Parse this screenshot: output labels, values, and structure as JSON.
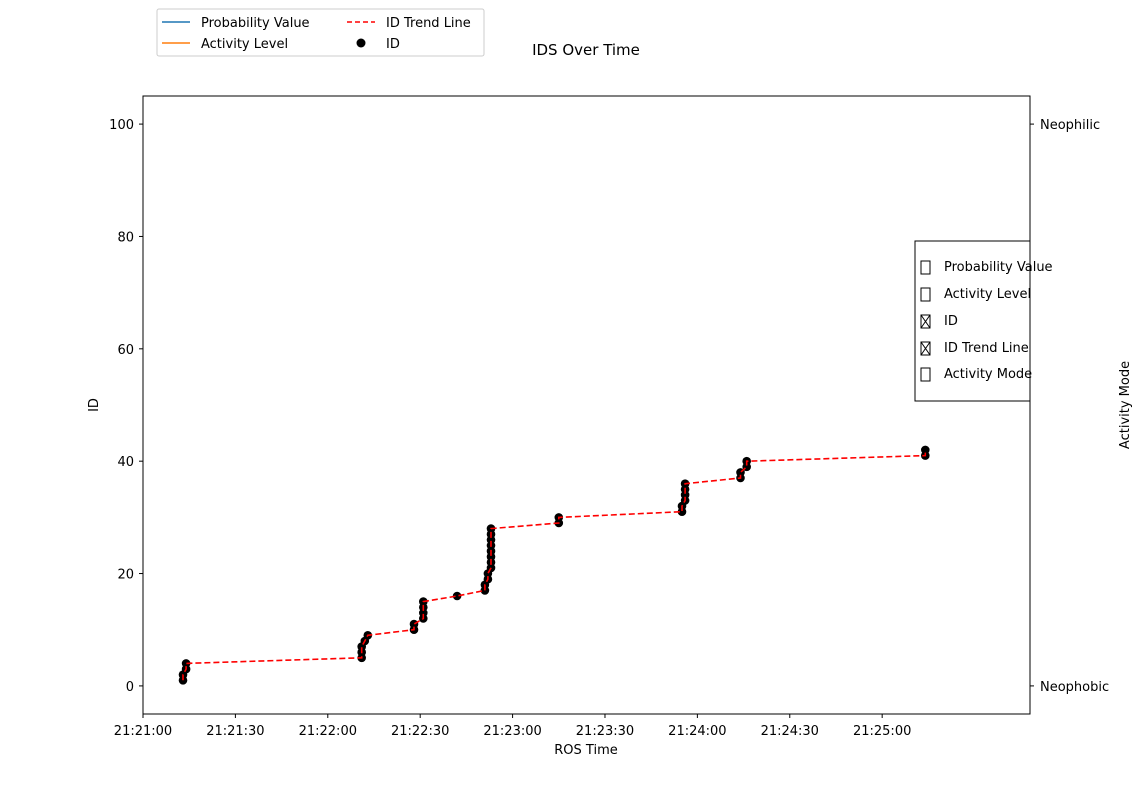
{
  "chart_data": {
    "type": "scatter",
    "title": "IDS Over Time",
    "xlabel": "ROS Time",
    "ylabel": "ID",
    "y2label": "Activity Mode",
    "xlim": [
      "21:21:00",
      "21:25:48"
    ],
    "ylim": [
      -5,
      105
    ],
    "x_ticks": [
      "21:21:00",
      "21:21:30",
      "21:22:00",
      "21:22:30",
      "21:23:00",
      "21:23:30",
      "21:24:00",
      "21:24:30",
      "21:25:00"
    ],
    "y_ticks": [
      0,
      20,
      40,
      60,
      80,
      100
    ],
    "y2_ticks": [
      {
        "value": 100,
        "label": "Neophilic"
      },
      {
        "value": 0,
        "label": "Neophobic"
      }
    ],
    "grid": false,
    "legend_position": "top-left outside",
    "colors": {
      "probability_value": "#1f77b4",
      "activity_level": "#ff7f0e",
      "trend_line": "#ff0000",
      "points": "#000000"
    },
    "series": [
      {
        "name": "Probability Value",
        "kind": "line",
        "visible": false,
        "x": [],
        "y": []
      },
      {
        "name": "Activity Level",
        "kind": "line",
        "visible": false,
        "x": [],
        "y": []
      },
      {
        "name": "ID",
        "kind": "scatter",
        "x": [
          "21:21:13",
          "21:21:13",
          "21:21:14",
          "21:21:14",
          "21:22:11",
          "21:22:11",
          "21:22:11",
          "21:22:12",
          "21:22:13",
          "21:22:28",
          "21:22:28",
          "21:22:31",
          "21:22:31",
          "21:22:31",
          "21:22:31",
          "21:22:42",
          "21:22:51",
          "21:22:51",
          "21:22:52",
          "21:22:52",
          "21:22:53",
          "21:22:53",
          "21:22:53",
          "21:22:53",
          "21:22:53",
          "21:22:53",
          "21:22:53",
          "21:22:53",
          "21:23:15",
          "21:23:15",
          "21:23:55",
          "21:23:55",
          "21:23:56",
          "21:23:56",
          "21:23:56",
          "21:23:56",
          "21:24:14",
          "21:24:14",
          "21:24:16",
          "21:24:16",
          "21:25:14",
          "21:25:14"
        ],
        "y": [
          1,
          2,
          3,
          4,
          5,
          6,
          7,
          8,
          9,
          10,
          11,
          12,
          13,
          14,
          15,
          16,
          17,
          18,
          19,
          20,
          21,
          22,
          23,
          24,
          25,
          26,
          27,
          28,
          29,
          30,
          31,
          32,
          33,
          34,
          35,
          36,
          37,
          38,
          39,
          40,
          41,
          42
        ]
      },
      {
        "name": "ID Trend Line",
        "kind": "line",
        "x": [
          "21:21:13",
          "21:21:13",
          "21:21:14",
          "21:21:14",
          "21:22:11",
          "21:22:11",
          "21:22:11",
          "21:22:12",
          "21:22:13",
          "21:22:28",
          "21:22:28",
          "21:22:31",
          "21:22:31",
          "21:22:31",
          "21:22:31",
          "21:22:42",
          "21:22:51",
          "21:22:51",
          "21:22:52",
          "21:22:52",
          "21:22:53",
          "21:22:53",
          "21:22:53",
          "21:22:53",
          "21:22:53",
          "21:22:53",
          "21:22:53",
          "21:22:53",
          "21:23:15",
          "21:23:15",
          "21:23:55",
          "21:23:55",
          "21:23:56",
          "21:23:56",
          "21:23:56",
          "21:23:56",
          "21:24:14",
          "21:24:14",
          "21:24:16",
          "21:24:16",
          "21:25:14",
          "21:25:14"
        ],
        "y": [
          1,
          2,
          3,
          4,
          5,
          6,
          7,
          8,
          9,
          10,
          11,
          12,
          13,
          14,
          15,
          16,
          17,
          18,
          19,
          20,
          21,
          22,
          23,
          24,
          25,
          26,
          27,
          28,
          29,
          30,
          31,
          32,
          33,
          34,
          35,
          36,
          37,
          38,
          39,
          40,
          41,
          42
        ]
      }
    ]
  },
  "legend": {
    "items": [
      {
        "label": "Probability Value",
        "kind": "line",
        "color": "#1f77b4"
      },
      {
        "label": "Activity Level",
        "kind": "line",
        "color": "#ff7f0e"
      },
      {
        "label": "ID Trend Line",
        "kind": "dashed",
        "color": "#ff0000"
      },
      {
        "label": "ID",
        "kind": "dot",
        "color": "#000000"
      }
    ]
  },
  "check_buttons": {
    "items": [
      {
        "label": "Probability Value",
        "checked": false
      },
      {
        "label": "Activity Level",
        "checked": false
      },
      {
        "label": "ID",
        "checked": true
      },
      {
        "label": "ID Trend Line",
        "checked": true
      },
      {
        "label": "Activity Mode",
        "checked": false
      }
    ]
  }
}
